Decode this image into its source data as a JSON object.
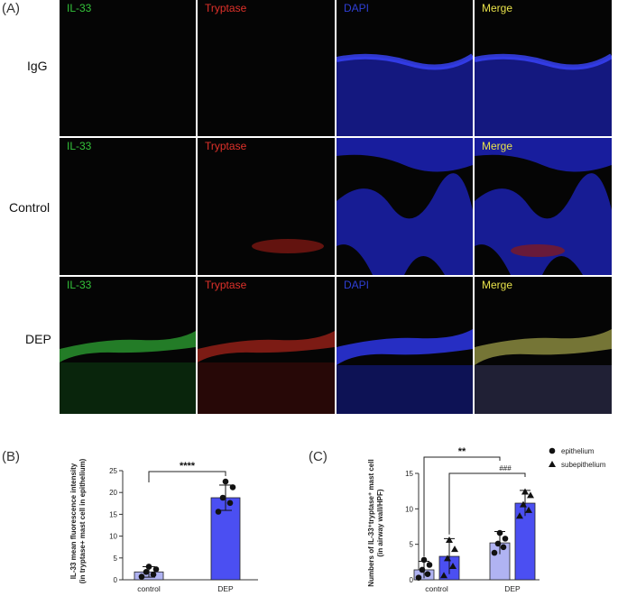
{
  "panel_a": {
    "letter": "(A)",
    "rows": [
      {
        "label": "IgG",
        "channels": [
          {
            "text": "IL-33",
            "color": "green"
          },
          {
            "text": "Tryptase",
            "color": "red"
          },
          {
            "text": "DAPI",
            "color": "blue"
          },
          {
            "text": "Merge",
            "color": "yellow"
          }
        ]
      },
      {
        "label": "Control",
        "channels": [
          {
            "text": "IL-33",
            "color": "green"
          },
          {
            "text": "Tryptase",
            "color": "red"
          },
          {
            "text": "",
            "color": "blue"
          },
          {
            "text": "Merge",
            "color": "yellow"
          }
        ]
      },
      {
        "label": "DEP",
        "channels": [
          {
            "text": "IL-33",
            "color": "green"
          },
          {
            "text": "Tryptase",
            "color": "red"
          },
          {
            "text": "DAPI",
            "color": "blue"
          },
          {
            "text": "Merge",
            "color": "yellow"
          }
        ]
      }
    ]
  },
  "panel_b": {
    "letter": "(B)"
  },
  "panel_c": {
    "letter": "(C)"
  },
  "chart_data": [
    {
      "type": "bar",
      "categories": [
        "control",
        "DEP"
      ],
      "values": [
        1.8,
        18.8
      ],
      "errors": [
        1.2,
        2.9
      ],
      "points": [
        [
          0.7,
          1.2,
          1.8,
          2.4,
          3.0
        ],
        [
          15.6,
          17.6,
          18.8,
          21.2,
          22.5
        ]
      ],
      "ylabel": "IL-33 mean fluorescence intensity\n(in tryptase+ mast cell in epithelium)",
      "ylim": [
        0,
        25
      ],
      "yticks": [
        0,
        5,
        10,
        15,
        20,
        25
      ],
      "significance": [
        {
          "from": 0,
          "to": 1,
          "label": "****"
        }
      ],
      "bar_colors": [
        "#b0b3f2",
        "#4b4ff2"
      ]
    },
    {
      "type": "bar",
      "categories": [
        "control",
        "DEP"
      ],
      "series": [
        {
          "name": "epithelium",
          "marker": "circle",
          "values": [
            1.4,
            5.2
          ],
          "errors": [
            1.2,
            1.6
          ],
          "points": [
            [
              0.3,
              0.8,
              1.4,
              2.1,
              2.8
            ],
            [
              3.8,
              4.6,
              5.1,
              5.8,
              6.6
            ]
          ]
        },
        {
          "name": "subepithelium",
          "marker": "triangle",
          "values": [
            3.3,
            10.8
          ],
          "errors": [
            2.5,
            1.8
          ],
          "points": [
            [
              0.6,
              1.9,
              3.0,
              4.3,
              5.6
            ],
            [
              9.0,
              9.8,
              10.6,
              11.9,
              12.4
            ]
          ]
        }
      ],
      "ylabel": "Numbers of IL-33⁺tryptase⁺ mast cell\n(in airway wall/HPF)",
      "ylim": [
        0,
        15
      ],
      "yticks": [
        0,
        5,
        10,
        15
      ],
      "significance": [
        {
          "label": "**"
        },
        {
          "label": "###"
        }
      ],
      "legend_placement": "top-right",
      "bar_colors": [
        "#b0b3f2",
        "#4b4ff2"
      ]
    }
  ]
}
